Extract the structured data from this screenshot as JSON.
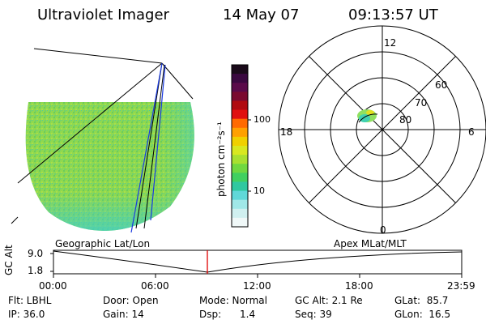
{
  "header": {
    "instrument": "Ultraviolet Imager",
    "date": "14 May 07",
    "time": "09:13:57 UT"
  },
  "colorbar": {
    "unit_label": "photon cm⁻²s⁻¹",
    "ticks": [
      "100",
      "10"
    ],
    "colors": [
      "#1a0a1a",
      "#3a0840",
      "#5a0a4a",
      "#7a0a30",
      "#b00a10",
      "#e01010",
      "#ff6a00",
      "#ffa000",
      "#f0d000",
      "#d8e820",
      "#a8e030",
      "#70d840",
      "#40d060",
      "#30c8a0",
      "#60d8d8",
      "#a0e8e8",
      "#d0f0f0",
      "#f0f8f8"
    ]
  },
  "polar": {
    "labels": {
      "top": "12",
      "bottom": "0",
      "left": "18",
      "right": "6"
    },
    "lat_rings": [
      "60",
      "70",
      "80"
    ]
  },
  "timeline": {
    "ylabel": "GC Alt",
    "yticks": [
      "9.0",
      "1.8"
    ],
    "left_title": "Geographic Lat/Lon",
    "right_title": "Apex  MLat/MLT",
    "xticks": [
      "00:00",
      "06:00",
      "12:00",
      "18:00",
      "23:59"
    ]
  },
  "status": {
    "row1": {
      "filter": "Flt: LBHL",
      "door": "Door: Open",
      "mode": "Mode: Normal",
      "gc_alt": "GC Alt: 2.1 Re",
      "glat": "GLat:  85.7"
    },
    "row2": {
      "ip": "IP: 36.0",
      "gain": "Gain: 14",
      "dsp": "Dsp:      1.4",
      "seq": "Seq: 39",
      "glon": "GLon:  16.5"
    }
  }
}
